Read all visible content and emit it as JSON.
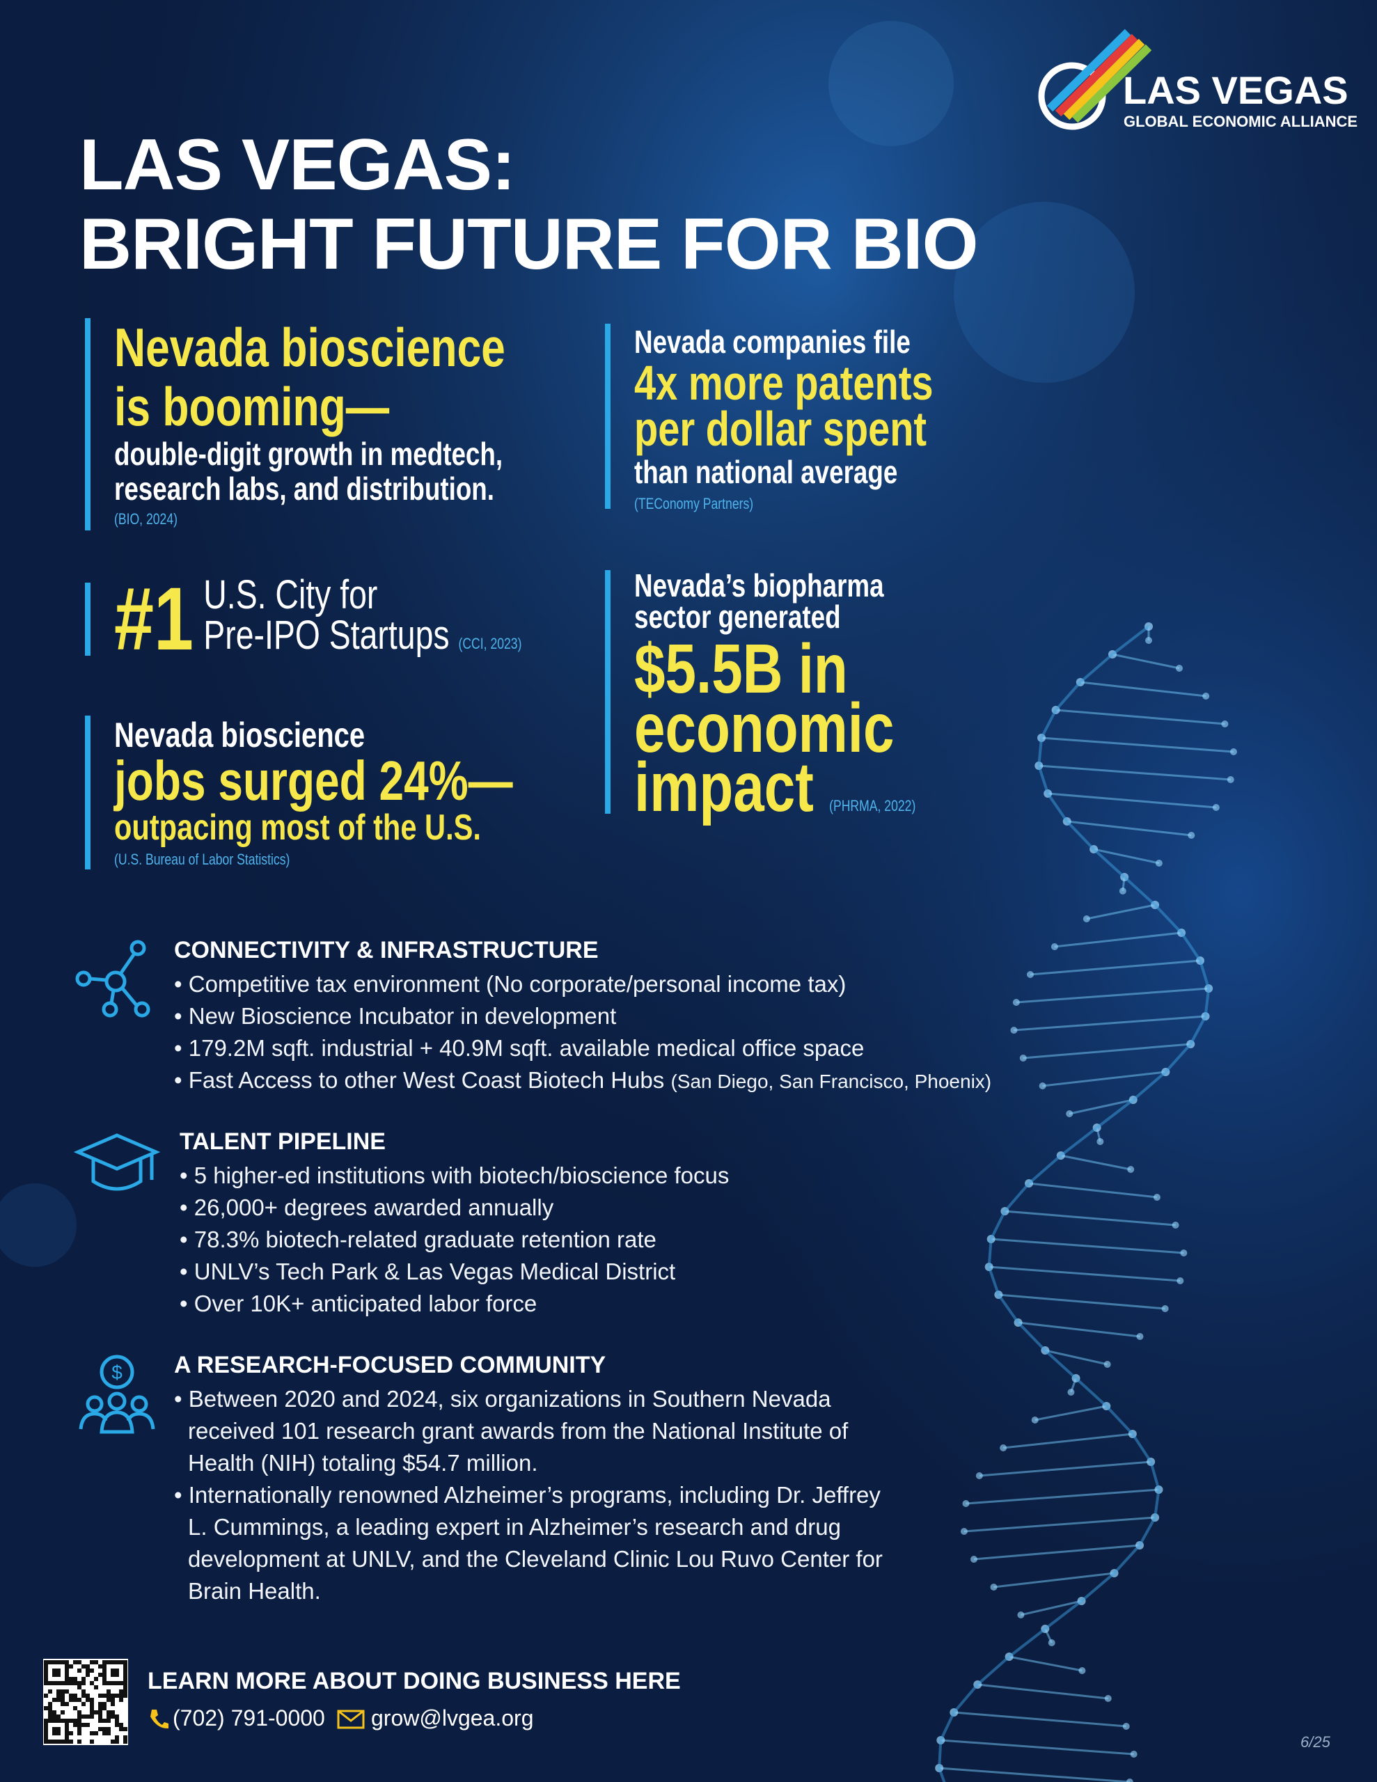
{
  "logo": {
    "name": "LAS VEGAS",
    "tagline": "GLOBAL ECONOMIC ALLIANCE"
  },
  "title": [
    "LAS VEGAS:",
    "BRIGHT FUTURE FOR BIO"
  ],
  "stats": [
    {
      "headline": [
        "Nevada bioscience",
        "is booming—"
      ],
      "detail": [
        "double-digit growth in medtech,",
        "research labs, and distribution."
      ],
      "source": "(BIO, 2024)"
    },
    {
      "intro": [
        "Nevada companies file"
      ],
      "headline": [
        "4x more patents",
        "per dollar spent"
      ],
      "detail": [
        "than national average"
      ],
      "source": "(TEConomy Partners)"
    },
    {
      "headline": [
        "#1"
      ],
      "detail": [
        "U.S. City for",
        "Pre-IPO Startups"
      ],
      "source": "(CCI, 2023)"
    },
    {
      "intro": [
        "Nevada’s biopharma",
        "sector generated"
      ],
      "headline": [
        "$5.5B in",
        "economic",
        "impact"
      ],
      "source": "(PHRMA, 2022)"
    },
    {
      "intro": [
        "Nevada bioscience"
      ],
      "headline": [
        "jobs surged 24%—"
      ],
      "detail": [
        "outpacing most of the U.S."
      ],
      "source": "(U.S. Bureau of Labor Statistics)"
    }
  ],
  "sections": [
    {
      "title": "CONNECTIVITY & INFRASTRUCTURE",
      "items": [
        {
          "text": "Competitive tax environment (No corporate/personal income tax)"
        },
        {
          "text": "New Bioscience Incubator in development"
        },
        {
          "text": "179.2M sqft. industrial + 40.9M sqft. available medical office space"
        },
        {
          "text": "Fast Access to other West Coast Biotech Hubs",
          "note": "(San Diego, San Francisco, Phoenix)"
        }
      ]
    },
    {
      "title": "TALENT PIPELINE",
      "items": [
        {
          "text": "5 higher-ed institutions with biotech/bioscience focus"
        },
        {
          "text": "26,000+ degrees awarded annually"
        },
        {
          "text": "78.3% biotech-related graduate retention rate"
        },
        {
          "text": "UNLV’s Tech Park & Las Vegas Medical District"
        },
        {
          "text": "Over 10K+ anticipated labor force"
        }
      ]
    },
    {
      "title": "A RESEARCH-FOCUSED COMMUNITY",
      "items": [
        {
          "text": "Between 2020 and 2024, six organizations in Southern Nevada received 101 research grant awards from the National Institute of Health (NIH) totaling $54.7 million."
        },
        {
          "text": "Internationally renowned Alzheimer’s programs, including Dr. Jeffrey L. Cummings, a leading expert in Alzheimer’s research and drug development at UNLV, and the Cleveland Clinic Lou Ruvo Center for Brain Health."
        }
      ]
    }
  ],
  "footer": {
    "cta": "LEARN MORE ABOUT DOING BUSINESS HERE",
    "phone": "(702) 791-0000",
    "email": "grow@lvgea.org",
    "page": "6/25"
  }
}
